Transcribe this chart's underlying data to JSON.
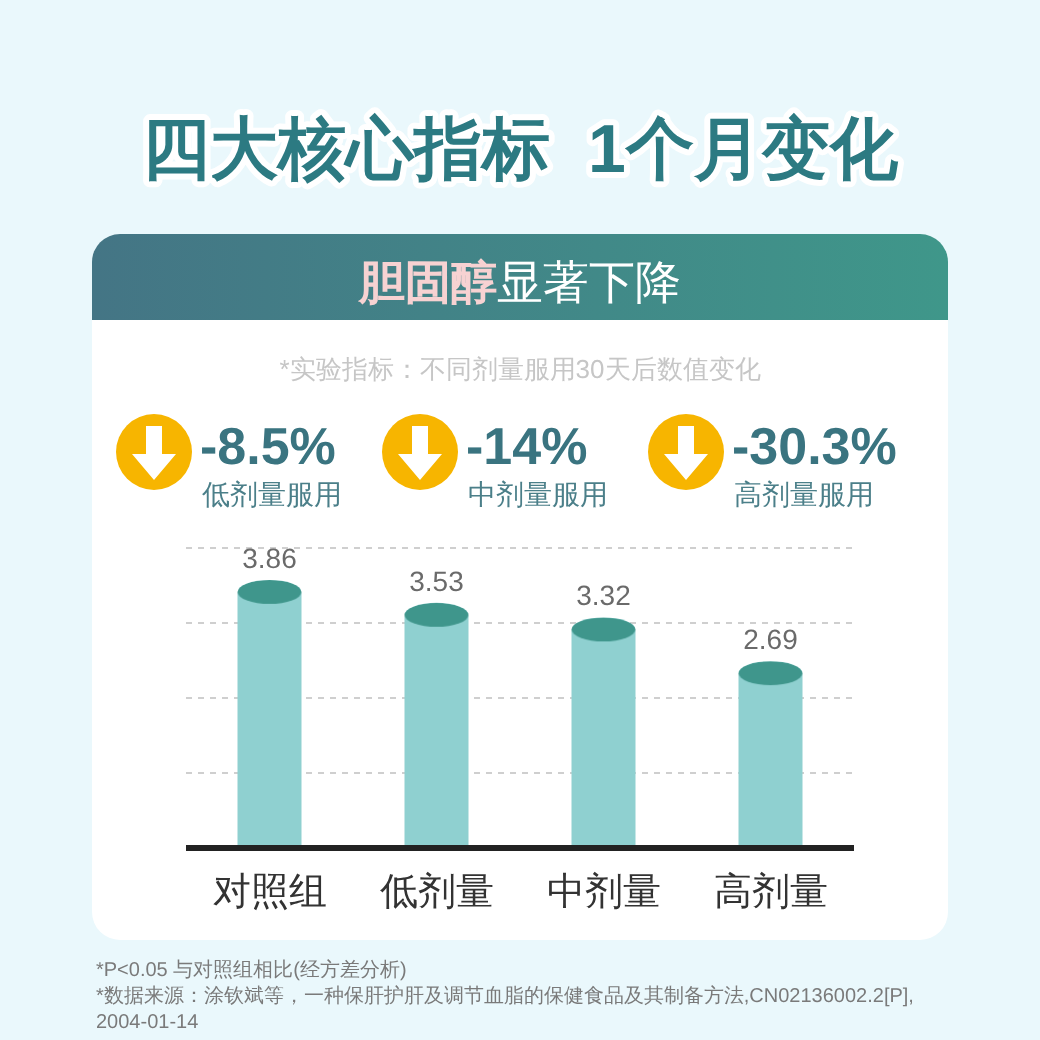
{
  "chart_data": {
    "type": "bar",
    "title": "四大核心指标  1个月变化",
    "subtitle": "胆固醇显著下降",
    "categories": [
      "对照组",
      "低剂量",
      "中剂量",
      "高剂量"
    ],
    "values": [
      3.86,
      3.53,
      3.32,
      2.69
    ],
    "color": "#8fd0d0",
    "ylim": [
      0,
      4.32
    ],
    "yticks": [
      {
        "value": 1.08,
        "label": null
      },
      {
        "value": 2.16,
        "label": null
      },
      {
        "value": 3.24,
        "label": null
      },
      {
        "value": 4.32,
        "label": null
      }
    ],
    "grid": "y",
    "data_labels": true,
    "annotations": [
      "*实验指标：不同剂量服用30天后数值变化",
      "-8.5%",
      "低剂量服用",
      "-14%",
      "中剂量服用",
      "-30.3%",
      "高剂量服用",
      "*P<0.05 与对照组相比(经方差分析)",
      "*数据来源：涂钦斌等，一种保肝护肝及调节血脂的保健食品及其制备方法,CN02136002.2[P],2004-01-14"
    ]
  }
}
